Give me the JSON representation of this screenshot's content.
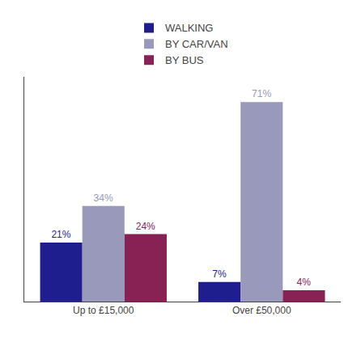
{
  "chart_data": {
    "type": "bar",
    "categories": [
      "Up to £15,000",
      "Over £50,000"
    ],
    "series": [
      {
        "name": "WALKING",
        "color": "#1e1e8f",
        "values": [
          21,
          7
        ],
        "value_labels": [
          "21%",
          "7%"
        ]
      },
      {
        "name": "BY CAR/VAN",
        "color": "#9999bb",
        "values": [
          34,
          71
        ],
        "value_labels": [
          "34%",
          "71%"
        ]
      },
      {
        "name": "BY BUS",
        "color": "#882255",
        "values": [
          24,
          4
        ],
        "value_labels": [
          "24%",
          "4%"
        ]
      }
    ],
    "ylim": [
      0,
      80
    ],
    "grid": false,
    "legend": "top",
    "data_labels": true,
    "tick_labels": "x"
  }
}
